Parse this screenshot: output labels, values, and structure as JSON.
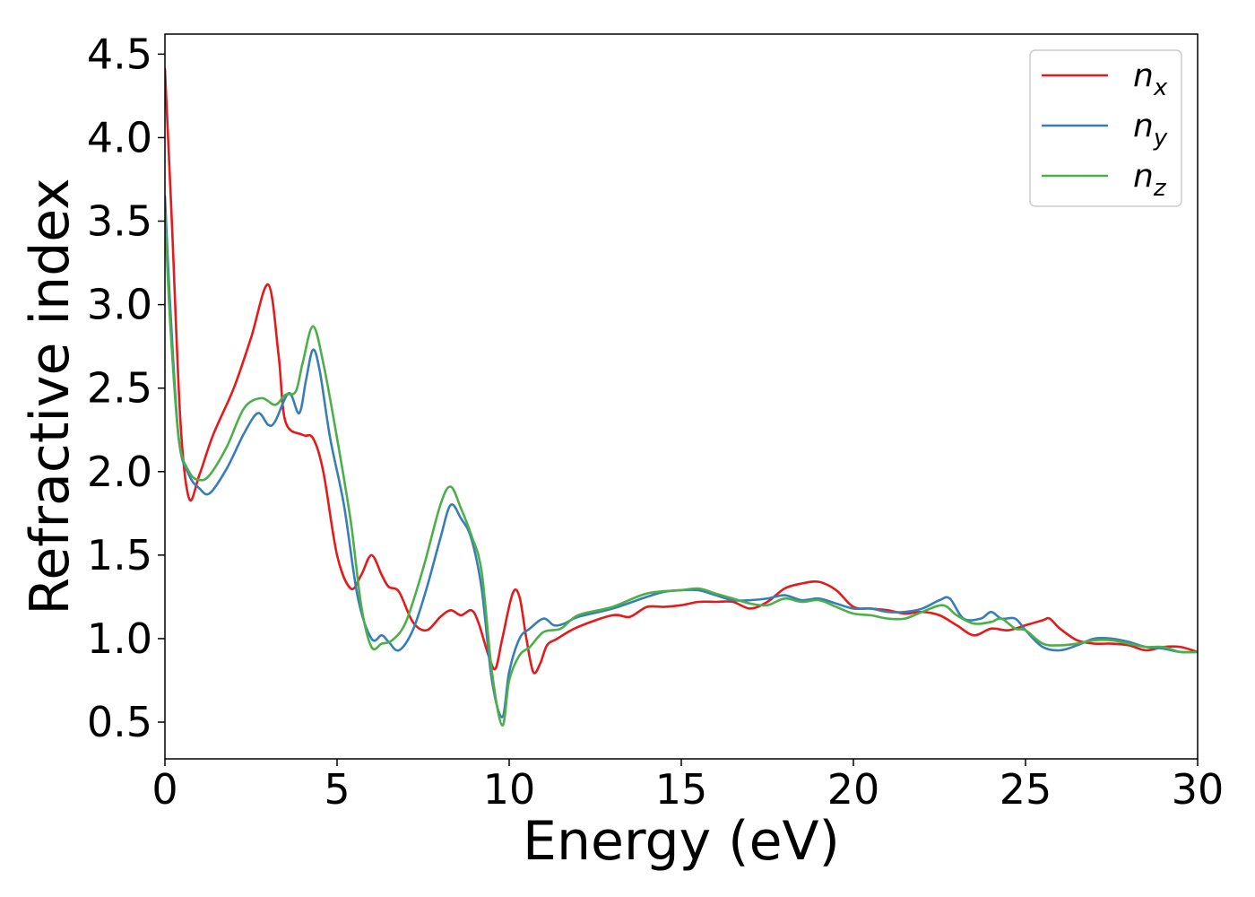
{
  "chart_data": {
    "type": "line",
    "xlabel": "Energy (eV)",
    "ylabel": "Refractive index",
    "xlim": [
      0,
      30
    ],
    "ylim": [
      0.28,
      4.62
    ],
    "xticks": [
      0,
      5,
      10,
      15,
      20,
      25,
      30
    ],
    "xtick_labels": [
      "0",
      "5",
      "10",
      "15",
      "20",
      "25",
      "30"
    ],
    "yticks": [
      0.5,
      1.0,
      1.5,
      2.0,
      2.5,
      3.0,
      3.5,
      4.0,
      4.5
    ],
    "ytick_labels": [
      "0.5",
      "1.0",
      "1.5",
      "2.0",
      "2.5",
      "3.0",
      "3.5",
      "4.0",
      "4.5"
    ],
    "grid": false,
    "legend_position": "top-right",
    "series": [
      {
        "name": "n",
        "subscript": "x",
        "color": "#e41a1c",
        "x": [
          0.0,
          0.2,
          0.45,
          0.7,
          1.0,
          1.4,
          2.0,
          2.5,
          3.0,
          3.3,
          3.5,
          4.0,
          4.3,
          4.6,
          5.0,
          5.4,
          5.7,
          6.0,
          6.3,
          6.5,
          6.8,
          7.2,
          7.6,
          8.0,
          8.3,
          8.6,
          8.9,
          9.1,
          9.4,
          9.6,
          9.8,
          10.1,
          10.3,
          10.5,
          10.7,
          10.9,
          11.1,
          11.4,
          12.0,
          13.0,
          13.5,
          14.0,
          14.5,
          15.0,
          15.5,
          16.0,
          16.5,
          17.0,
          17.5,
          18.0,
          18.5,
          19.0,
          19.5,
          20.0,
          20.5,
          21.0,
          21.5,
          22.0,
          22.5,
          23.0,
          23.5,
          24.0,
          24.5,
          25.0,
          25.5,
          25.7,
          26.0,
          26.5,
          27.0,
          27.5,
          28.0,
          28.5,
          29.0,
          29.5,
          30.0
        ],
        "y": [
          4.41,
          3.5,
          2.3,
          1.84,
          1.98,
          2.22,
          2.5,
          2.8,
          3.12,
          2.7,
          2.3,
          2.22,
          2.2,
          2.0,
          1.5,
          1.3,
          1.38,
          1.5,
          1.38,
          1.31,
          1.28,
          1.1,
          1.05,
          1.13,
          1.17,
          1.14,
          1.17,
          1.1,
          0.9,
          0.82,
          1.0,
          1.27,
          1.25,
          1.0,
          0.8,
          0.85,
          0.96,
          1.0,
          1.07,
          1.14,
          1.13,
          1.19,
          1.19,
          1.2,
          1.22,
          1.22,
          1.22,
          1.18,
          1.22,
          1.3,
          1.33,
          1.34,
          1.29,
          1.19,
          1.18,
          1.17,
          1.15,
          1.16,
          1.14,
          1.08,
          1.02,
          1.06,
          1.05,
          1.08,
          1.11,
          1.12,
          1.06,
          0.99,
          0.97,
          0.97,
          0.96,
          0.93,
          0.95,
          0.95,
          0.92
        ]
      },
      {
        "name": "n",
        "subscript": "y",
        "color": "#377eb8",
        "x": [
          0.0,
          0.15,
          0.4,
          0.7,
          1.0,
          1.3,
          1.8,
          2.3,
          2.7,
          3.0,
          3.2,
          3.6,
          3.9,
          4.1,
          4.3,
          4.5,
          4.8,
          5.2,
          5.6,
          6.0,
          6.3,
          6.5,
          6.8,
          7.2,
          7.6,
          8.0,
          8.3,
          8.6,
          8.9,
          9.2,
          9.5,
          9.8,
          10.0,
          10.3,
          10.6,
          11.0,
          11.3,
          11.6,
          12.0,
          13.0,
          14.0,
          14.5,
          15.0,
          15.5,
          16.0,
          16.5,
          17.0,
          17.5,
          18.0,
          18.5,
          19.0,
          19.5,
          20.0,
          20.5,
          21.0,
          21.5,
          22.0,
          22.5,
          22.8,
          23.2,
          23.7,
          24.0,
          24.3,
          24.7,
          25.0,
          25.5,
          26.0,
          26.5,
          27.0,
          27.5,
          28.0,
          28.5,
          29.0,
          29.5,
          30.0
        ],
        "y": [
          3.65,
          3.0,
          2.2,
          1.98,
          1.9,
          1.87,
          2.02,
          2.23,
          2.35,
          2.28,
          2.3,
          2.47,
          2.35,
          2.55,
          2.73,
          2.6,
          2.2,
          1.8,
          1.25,
          1.0,
          1.02,
          0.98,
          0.93,
          1.05,
          1.3,
          1.6,
          1.8,
          1.72,
          1.6,
          1.3,
          0.75,
          0.53,
          0.8,
          1.0,
          1.06,
          1.12,
          1.08,
          1.09,
          1.13,
          1.18,
          1.25,
          1.28,
          1.29,
          1.29,
          1.26,
          1.23,
          1.23,
          1.24,
          1.26,
          1.23,
          1.24,
          1.21,
          1.18,
          1.18,
          1.16,
          1.16,
          1.18,
          1.23,
          1.24,
          1.12,
          1.12,
          1.16,
          1.12,
          1.12,
          1.05,
          0.95,
          0.93,
          0.96,
          1.0,
          1.0,
          0.98,
          0.95,
          0.94,
          0.92,
          0.92
        ]
      },
      {
        "name": "n",
        "subscript": "z",
        "color": "#4daf4a",
        "x": [
          0.0,
          0.15,
          0.4,
          0.7,
          1.0,
          1.3,
          1.8,
          2.3,
          2.8,
          3.2,
          3.5,
          3.8,
          4.0,
          4.3,
          4.6,
          5.0,
          5.4,
          5.7,
          6.0,
          6.3,
          6.6,
          7.0,
          7.5,
          8.0,
          8.3,
          8.6,
          8.9,
          9.2,
          9.5,
          9.8,
          10.0,
          10.3,
          10.6,
          11.0,
          11.5,
          12.0,
          13.0,
          14.0,
          15.0,
          15.5,
          16.0,
          16.5,
          17.0,
          17.5,
          18.0,
          18.5,
          19.0,
          19.5,
          20.0,
          20.5,
          21.0,
          21.5,
          22.0,
          22.6,
          23.0,
          23.5,
          24.0,
          24.3,
          24.7,
          25.0,
          25.5,
          26.0,
          26.5,
          27.0,
          27.5,
          28.0,
          28.5,
          29.0,
          29.5,
          30.0
        ],
        "y": [
          3.55,
          2.9,
          2.2,
          2.0,
          1.95,
          1.98,
          2.15,
          2.38,
          2.44,
          2.4,
          2.46,
          2.48,
          2.65,
          2.87,
          2.65,
          2.2,
          1.7,
          1.2,
          0.95,
          0.97,
          0.99,
          1.1,
          1.42,
          1.8,
          1.91,
          1.78,
          1.62,
          1.4,
          0.8,
          0.48,
          0.75,
          0.9,
          0.95,
          1.04,
          1.06,
          1.14,
          1.19,
          1.27,
          1.29,
          1.3,
          1.27,
          1.24,
          1.21,
          1.2,
          1.24,
          1.22,
          1.23,
          1.19,
          1.15,
          1.14,
          1.12,
          1.12,
          1.16,
          1.2,
          1.14,
          1.09,
          1.1,
          1.12,
          1.06,
          1.05,
          0.97,
          0.96,
          0.97,
          0.99,
          0.99,
          0.97,
          0.95,
          0.95,
          0.92,
          0.92
        ]
      }
    ]
  }
}
